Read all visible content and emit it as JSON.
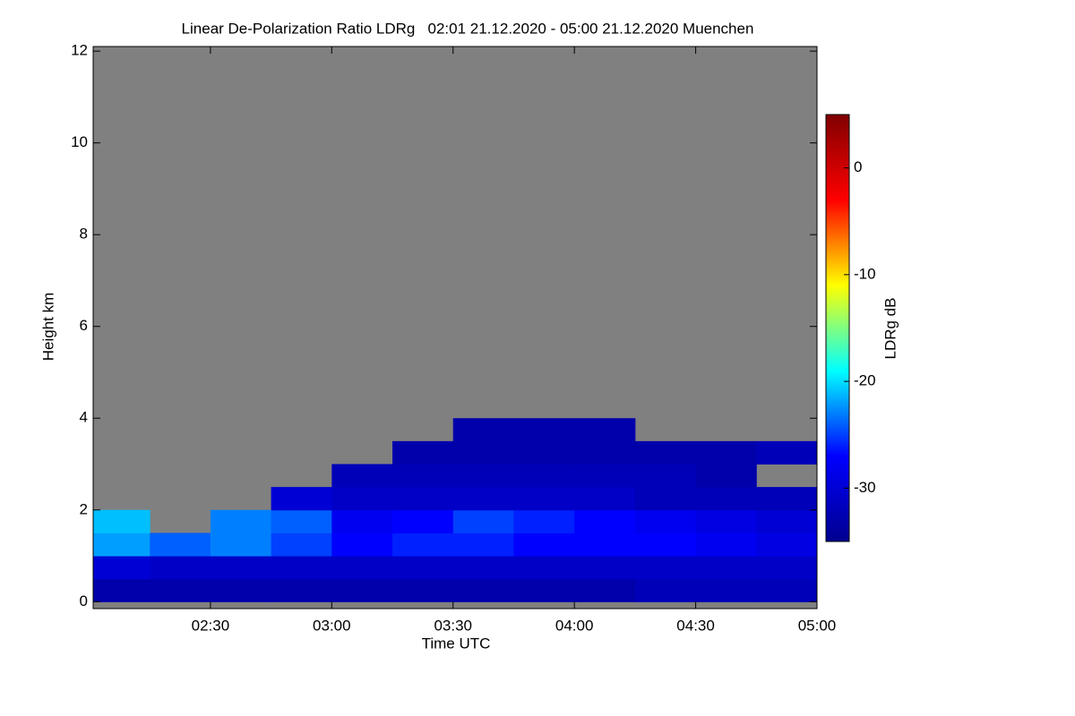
{
  "chart_data": {
    "type": "heatmap",
    "title": "Linear De-Polarization Ratio LDRg   02:01 21.12.2020 - 05:00 21.12.2020 Muenchen",
    "x_label": "Time UTC",
    "y_label": "Height km",
    "colorbar_label": "LDRg dB",
    "xlim": [
      121,
      300
    ],
    "xticks": [
      {
        "value": 150,
        "label": "02:30"
      },
      {
        "value": 180,
        "label": "03:00"
      },
      {
        "value": 210,
        "label": "03:30"
      },
      {
        "value": 240,
        "label": "04:00"
      },
      {
        "value": 270,
        "label": "04:30"
      },
      {
        "value": 300,
        "label": "05:00"
      }
    ],
    "ylim": [
      -0.15,
      12.1
    ],
    "yticks": [
      0,
      2,
      4,
      6,
      8,
      10,
      12
    ],
    "clim": [
      -35,
      5
    ],
    "cticks": [
      0,
      -10,
      -20,
      -30
    ],
    "colormap": [
      "#00008f",
      "#0000ff",
      "#00ffff",
      "#ffff00",
      "#ff0000",
      "#800000"
    ],
    "missing_color": "#808080",
    "x_edges": [
      121,
      135,
      150,
      165,
      180,
      195,
      210,
      225,
      240,
      255,
      270,
      285,
      300
    ],
    "y_edges": [
      0,
      0.5,
      1,
      1.5,
      2,
      2.5,
      3,
      3.5,
      4
    ],
    "z": [
      [
        -33,
        -33,
        -33,
        -33,
        -33,
        -33,
        -33,
        -33,
        -33,
        -32,
        -32,
        -32
      ],
      [
        -30,
        -31,
        -31,
        -31,
        -31,
        -31,
        -31,
        -31,
        -31,
        -31,
        -31,
        -31
      ],
      [
        -22,
        -24,
        -23,
        -25,
        -27,
        -26,
        -26,
        -27,
        -27,
        -27,
        -28,
        -29
      ],
      [
        -21,
        null,
        -23,
        -24,
        -28,
        -27,
        -25,
        -26,
        -27,
        -28,
        -29,
        -30
      ],
      [
        null,
        null,
        null,
        -30,
        -31,
        -31,
        -31,
        -31,
        -31,
        -32,
        -32,
        -32
      ],
      [
        null,
        null,
        null,
        null,
        -32,
        -32,
        -32,
        -32,
        -32,
        -32,
        -33,
        null
      ],
      [
        null,
        null,
        null,
        null,
        null,
        -33,
        -33,
        -33,
        -33,
        -33,
        -33,
        -32
      ],
      [
        null,
        null,
        null,
        null,
        null,
        null,
        -33,
        -33,
        -33,
        null,
        null,
        null
      ]
    ]
  }
}
